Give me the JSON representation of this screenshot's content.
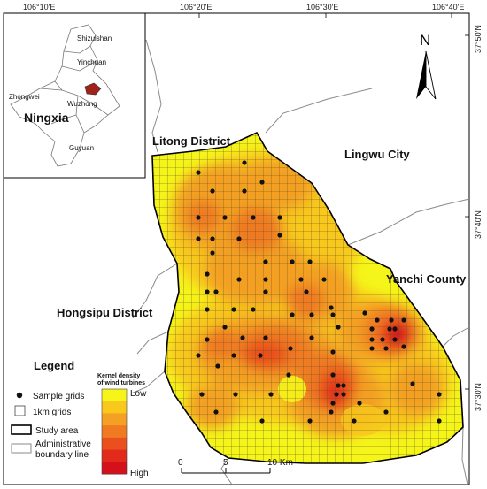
{
  "coords": {
    "top": [
      "106°10'E",
      "106°20'E",
      "106°30'E",
      "106°40'E"
    ],
    "right": [
      "37°50'N",
      "37°40'N",
      "37°30'N"
    ]
  },
  "north_arrow": {
    "letter": "N"
  },
  "inset": {
    "region": "Ningxia",
    "places": [
      "Shizuishan",
      "Yinchuan",
      "Zhongwei",
      "Wuzhong",
      "Guyuan"
    ]
  },
  "districts": {
    "litong": "Litong District",
    "lingwu": "Lingwu City",
    "yanchi": "Yanchi County",
    "hongsipu": "Hongsipu District"
  },
  "legend": {
    "title": "Legend",
    "density_title_1": "Kernel density",
    "density_title_2": "of wind turbines",
    "low": "Low",
    "high": "High",
    "sample_grids": "Sample grids",
    "km_grids": "1km grids",
    "study_area": "Study area",
    "admin_1": "Administrative",
    "admin_2": "boundary line"
  },
  "density_colors": [
    "#f5f51a",
    "#f8c81c",
    "#f3a024",
    "#ef7a22",
    "#e9501e",
    "#e22a1c",
    "#d4101a"
  ],
  "scale_bar": {
    "ticks": [
      "0",
      "5",
      "10 Km"
    ]
  }
}
